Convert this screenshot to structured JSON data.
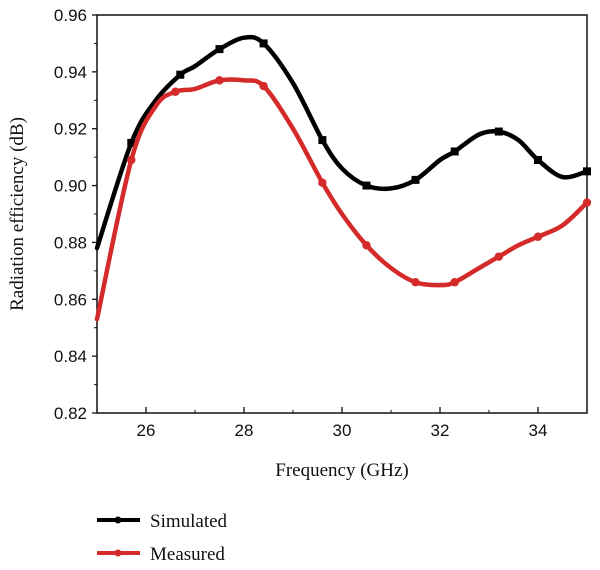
{
  "chart_data": {
    "type": "line",
    "title": "",
    "xlabel": "Frequency (GHz)",
    "ylabel": "Radiation efficiency (dB)",
    "xlim": [
      25,
      35
    ],
    "ylim": [
      0.82,
      0.96
    ],
    "x_ticks": [
      "26",
      "28",
      "30",
      "32",
      "34"
    ],
    "x_tick_values": [
      26,
      28,
      30,
      32,
      34
    ],
    "y_ticks": [
      "0.82",
      "0.84",
      "0.86",
      "0.88",
      "0.90",
      "0.92",
      "0.94",
      "0.96"
    ],
    "y_tick_values": [
      0.82,
      0.84,
      0.86,
      0.88,
      0.9,
      0.92,
      0.94,
      0.96
    ],
    "grid": false,
    "legend_position": "below-left",
    "series": [
      {
        "name": "Simulated",
        "color": "#000000",
        "marker": "square",
        "x": [
          25.0,
          25.7,
          26.2,
          26.7,
          27.0,
          27.5,
          28.0,
          28.4,
          29.0,
          29.6,
          30.0,
          30.5,
          31.0,
          31.5,
          32.0,
          32.3,
          32.8,
          33.2,
          33.6,
          34.0,
          34.5,
          35.0
        ],
        "y": [
          0.878,
          0.915,
          0.93,
          0.939,
          0.942,
          0.948,
          0.952,
          0.95,
          0.936,
          0.916,
          0.906,
          0.9,
          0.899,
          0.902,
          0.909,
          0.912,
          0.918,
          0.919,
          0.916,
          0.909,
          0.903,
          0.905
        ]
      },
      {
        "name": "Measured",
        "color": "#d42a2a",
        "marker": "circle",
        "x": [
          25.0,
          25.7,
          26.2,
          26.6,
          27.0,
          27.5,
          28.0,
          28.4,
          29.0,
          29.6,
          30.0,
          30.5,
          31.0,
          31.5,
          32.0,
          32.3,
          32.8,
          33.2,
          33.6,
          34.0,
          34.5,
          35.0
        ],
        "y": [
          0.853,
          0.909,
          0.928,
          0.933,
          0.934,
          0.937,
          0.937,
          0.935,
          0.92,
          0.901,
          0.89,
          0.879,
          0.871,
          0.866,
          0.865,
          0.866,
          0.871,
          0.875,
          0.879,
          0.882,
          0.886,
          0.894
        ]
      }
    ]
  }
}
